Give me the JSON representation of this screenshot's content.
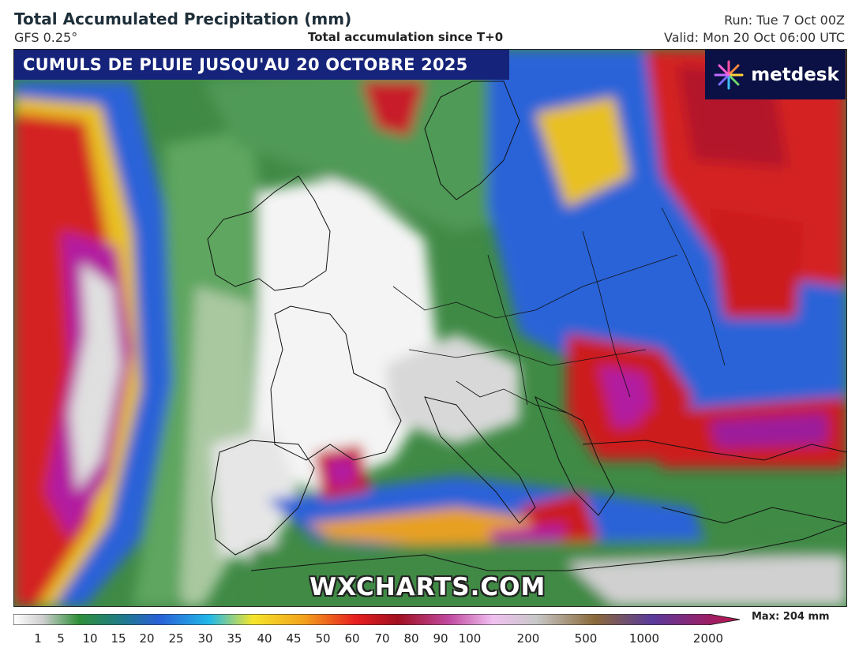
{
  "header": {
    "title": "Total Accumulated Precipitation (mm)",
    "model": "GFS 0.25°",
    "subtitle": "Total accumulation since T+0",
    "run": "Run: Tue 7 Oct 00Z",
    "valid": "Valid: Mon 20 Oct 06:00 UTC"
  },
  "banner": {
    "text": "CUMULS DE PLUIE JUSQU'AU 20 OCTOBRE 2025",
    "background": "#15237a"
  },
  "logo": {
    "text": "metdesk",
    "icon": "starburst-icon"
  },
  "watermark": "WXCHARTS.COM",
  "legend": {
    "max_label": "Max: 204 mm",
    "ticks": [
      "1",
      "5",
      "10",
      "15",
      "20",
      "25",
      "30",
      "35",
      "40",
      "45",
      "50",
      "60",
      "70",
      "80",
      "90",
      "100",
      "200",
      "500",
      "1000",
      "2000"
    ]
  },
  "colors": {
    "ocean_green": "#4a8f4a",
    "heavy_red": "#cc1a1a",
    "extreme_purple": "#b01aa0",
    "moderate_blue": "#2a5fd6",
    "dry_white": "#f2f2f2"
  }
}
